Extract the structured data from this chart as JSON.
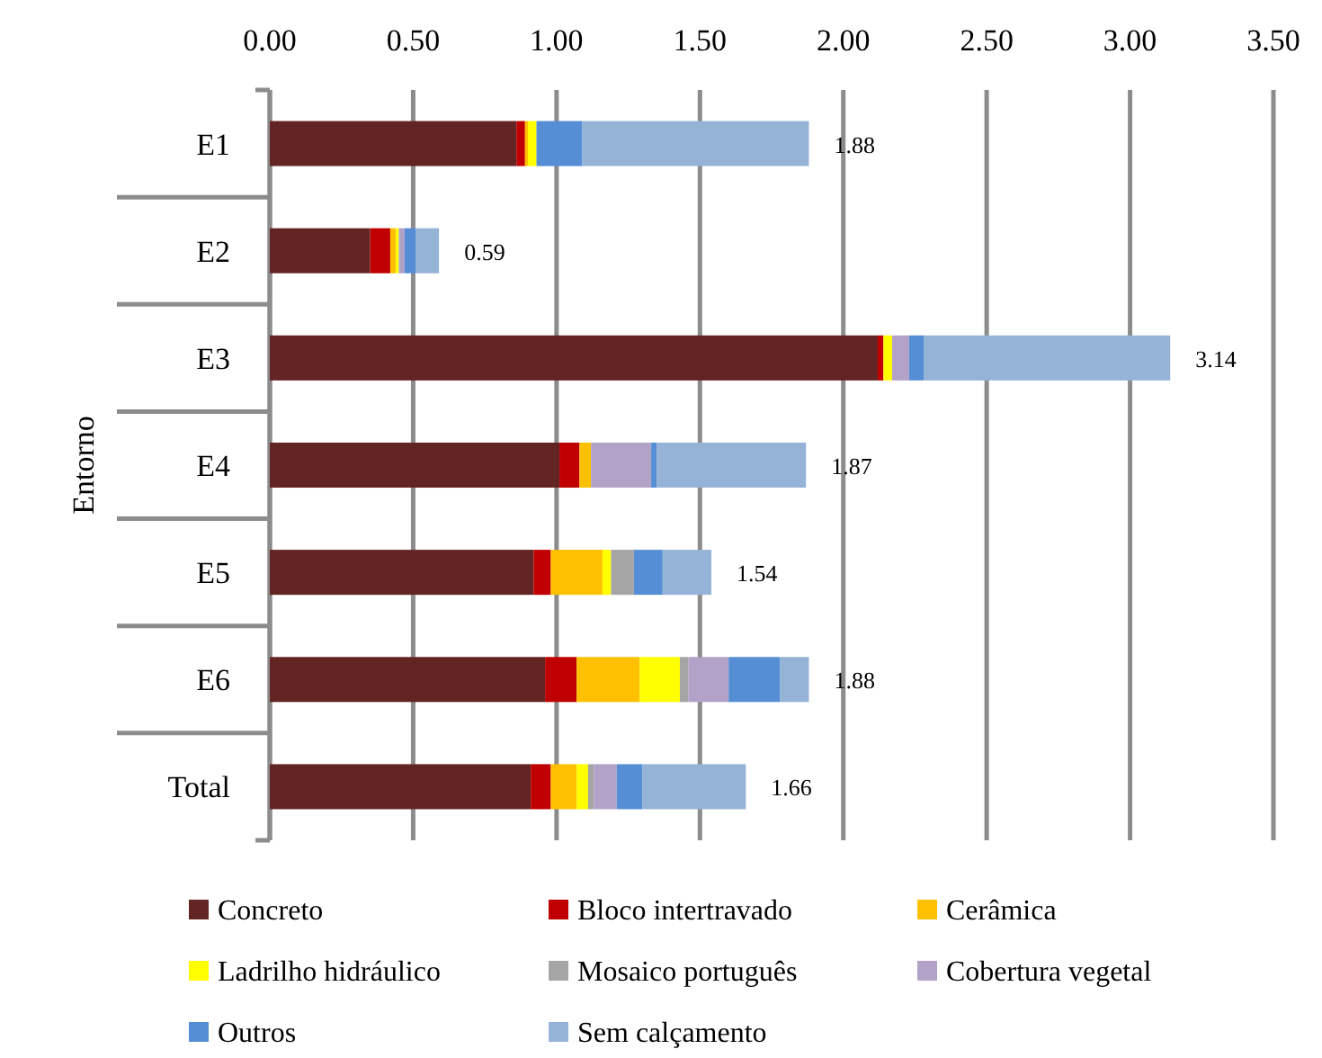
{
  "chart_data": {
    "type": "bar",
    "orientation": "horizontal",
    "stacked": true,
    "ylabel": "Entorno",
    "categories": [
      "E1",
      "E2",
      "E3",
      "E4",
      "E5",
      "E6",
      "Total"
    ],
    "series": [
      {
        "name": "Concreto",
        "color": "#632523",
        "values": [
          0.86,
          0.35,
          2.12,
          1.01,
          0.92,
          0.96,
          0.91
        ]
      },
      {
        "name": "Bloco intertravado",
        "color": "#c00000",
        "values": [
          0.03,
          0.07,
          0.02,
          0.07,
          0.06,
          0.11,
          0.07
        ]
      },
      {
        "name": "Cerâmica",
        "color": "#ffc000",
        "values": [
          0.01,
          0.02,
          0,
          0.04,
          0.18,
          0.22,
          0.09
        ]
      },
      {
        "name": "Ladrilho hidráulico",
        "color": "#ffff00",
        "values": [
          0.03,
          0.01,
          0.03,
          0,
          0.03,
          0.14,
          0.04
        ]
      },
      {
        "name": "Mosaico português",
        "color": "#a5a5a5",
        "values": [
          0,
          0,
          0,
          0,
          0.08,
          0.03,
          0.02
        ]
      },
      {
        "name": "Cobertura vegetal",
        "color": "#b2a2c7",
        "values": [
          0,
          0.02,
          0.06,
          0.21,
          0,
          0.14,
          0.08
        ]
      },
      {
        "name": "Outros",
        "color": "#558ed5",
        "values": [
          0.16,
          0.04,
          0.05,
          0.02,
          0.1,
          0.18,
          0.09
        ]
      },
      {
        "name": "Sem calçamento",
        "color": "#95b3d7",
        "values": [
          0.79,
          0.08,
          0.86,
          0.52,
          0.17,
          0.1,
          0.36
        ]
      }
    ],
    "totals": [
      "1.88",
      "0.59",
      "3.14",
      "1.87",
      "1.54",
      "1.88",
      "1.66"
    ],
    "xlim": [
      0,
      3.5
    ],
    "xticks": [
      {
        "value": 0,
        "label": "0.00"
      },
      {
        "value": 0.5,
        "label": "0.50"
      },
      {
        "value": 1,
        "label": "1.00"
      },
      {
        "value": 1.5,
        "label": "1.50"
      },
      {
        "value": 2,
        "label": "2.00"
      },
      {
        "value": 2.5,
        "label": "2.50"
      },
      {
        "value": 3,
        "label": "3.00"
      },
      {
        "value": 3.5,
        "label": "3.50"
      }
    ],
    "grid": "x",
    "legend": "bottom"
  }
}
